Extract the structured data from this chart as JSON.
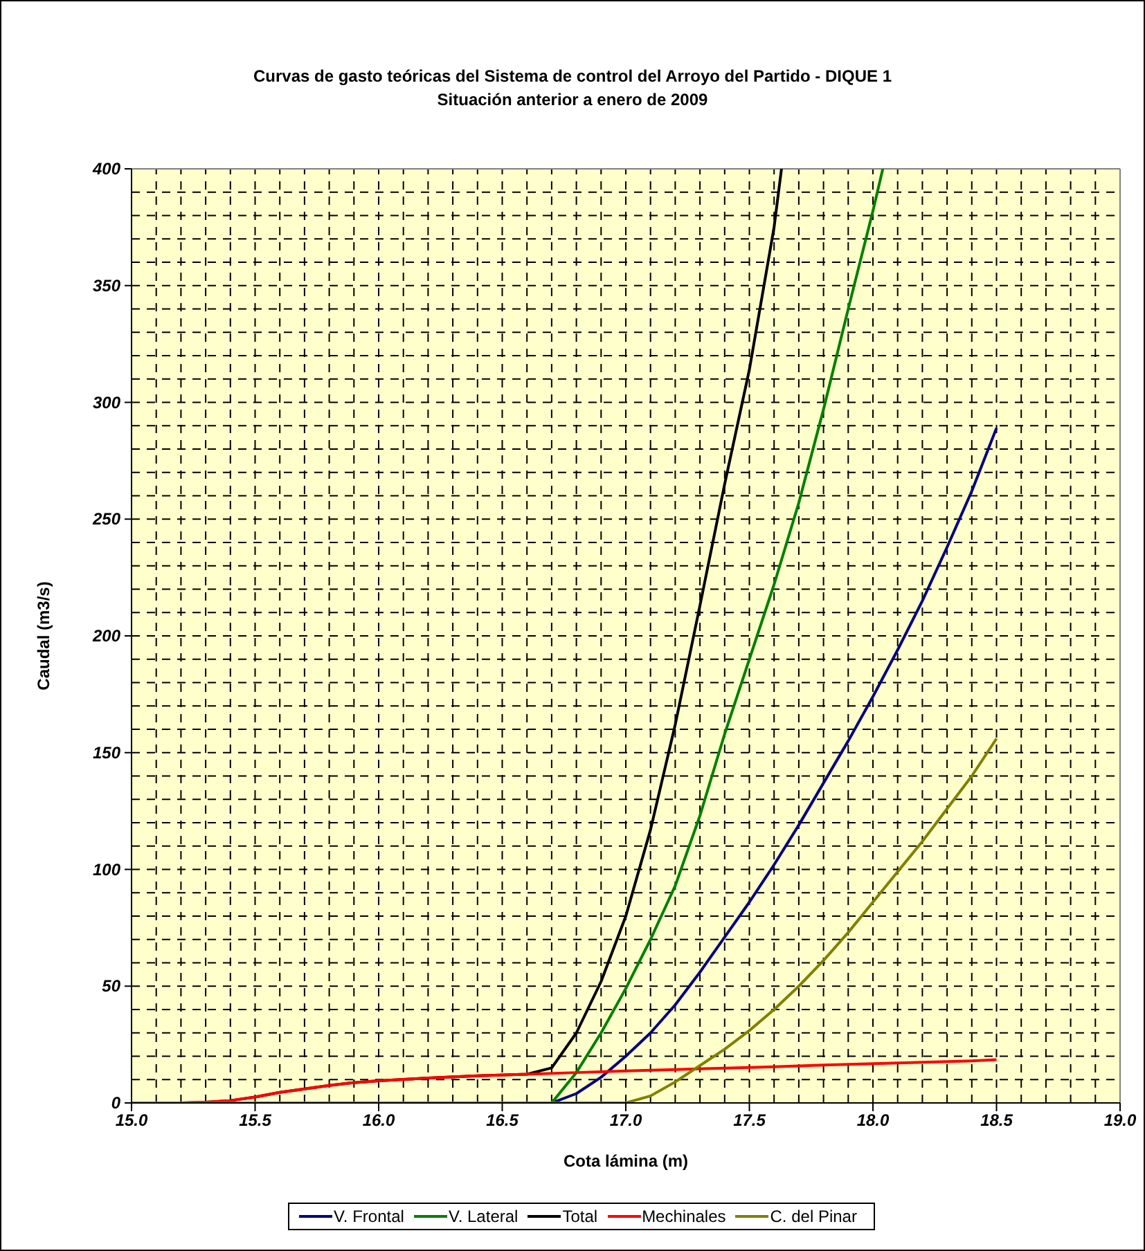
{
  "chart_data": {
    "type": "line",
    "title": "Curvas de gasto teóricas del Sistema de control del Arroyo del Partido - DIQUE 1",
    "subtitle": "Situación anterior a enero de 2009",
    "xlabel": "Cota lámina (m)",
    "ylabel": "Caudal (m3/s)",
    "xlim": [
      15.0,
      19.0
    ],
    "xticks": [
      {
        "value": 15.0,
        "label": "15.0"
      },
      {
        "value": 15.5,
        "label": "15.5"
      },
      {
        "value": 16.0,
        "label": "16.0"
      },
      {
        "value": 16.5,
        "label": "16.5"
      },
      {
        "value": 17.0,
        "label": "17.0"
      },
      {
        "value": 17.5,
        "label": "17.5"
      },
      {
        "value": 18.0,
        "label": "18.0"
      },
      {
        "value": 18.5,
        "label": "18.5"
      },
      {
        "value": 19.0,
        "label": "19.0"
      }
    ],
    "ylim": [
      0,
      400
    ],
    "yticks": [
      0,
      50,
      100,
      150,
      200,
      250,
      300,
      350,
      400
    ],
    "grid": true,
    "legend": "bottom",
    "series": [
      {
        "name": "V. Frontal",
        "color": "#000080",
        "x": [
          15.0,
          16.7,
          16.8,
          16.9,
          17.0,
          17.1,
          17.2,
          17.3,
          17.4,
          17.5,
          17.6,
          17.7,
          17.8,
          17.9,
          18.0,
          18.1,
          18.2,
          18.3,
          18.4,
          18.5
        ],
        "values": [
          0,
          0,
          4,
          11,
          20,
          30,
          42,
          56,
          71,
          86,
          102,
          119,
          137,
          155,
          174,
          194,
          215,
          238,
          262,
          289
        ]
      },
      {
        "name": "V. Lateral",
        "color": "#008000",
        "x": [
          15.0,
          16.7,
          16.8,
          16.9,
          17.0,
          17.1,
          17.2,
          17.3,
          17.4,
          17.5,
          17.6,
          17.7,
          17.8,
          17.9,
          18.0,
          18.04
        ],
        "values": [
          0,
          0,
          13,
          30,
          49,
          70,
          93,
          123,
          158,
          190,
          222,
          257,
          297,
          340,
          382,
          400
        ]
      },
      {
        "name": "Total",
        "color": "#000000",
        "x": [
          15.0,
          15.2,
          15.3,
          15.4,
          15.5,
          15.6,
          15.7,
          15.8,
          15.9,
          16.0,
          16.2,
          16.4,
          16.6,
          16.7,
          16.8,
          16.9,
          17.0,
          17.1,
          17.2,
          17.3,
          17.4,
          17.5,
          17.6,
          17.63
        ],
        "values": [
          0,
          0,
          0.3,
          1,
          2.5,
          4.5,
          6,
          7.5,
          8.7,
          9.5,
          10.7,
          11.6,
          12.3,
          15,
          30,
          52,
          80,
          117,
          162,
          213,
          265,
          314,
          375,
          400
        ]
      },
      {
        "name": "Mechinales",
        "color": "#ff0000",
        "x": [
          15.0,
          15.2,
          15.3,
          15.4,
          15.5,
          15.6,
          15.7,
          15.8,
          15.9,
          16.0,
          16.2,
          16.4,
          16.6,
          16.8,
          17.0,
          17.2,
          17.4,
          17.6,
          17.8,
          18.0,
          18.2,
          18.4,
          18.5
        ],
        "values": [
          0,
          0,
          0.3,
          1,
          2.5,
          4.5,
          6,
          7.5,
          8.7,
          9.5,
          10.7,
          11.6,
          12.3,
          13,
          13.7,
          14.3,
          14.9,
          15.5,
          16.2,
          16.8,
          17.4,
          18,
          18.5
        ]
      },
      {
        "name": "C. del Pinar",
        "color": "#808000",
        "x": [
          15.0,
          17.0,
          17.1,
          17.2,
          17.3,
          17.4,
          17.5,
          17.6,
          17.7,
          17.8,
          17.9,
          18.0,
          18.1,
          18.2,
          18.3,
          18.4,
          18.5
        ],
        "values": [
          0,
          0,
          3,
          9,
          16,
          23,
          31,
          40,
          50,
          61,
          73,
          86,
          99,
          112,
          126,
          140,
          156
        ]
      }
    ]
  }
}
